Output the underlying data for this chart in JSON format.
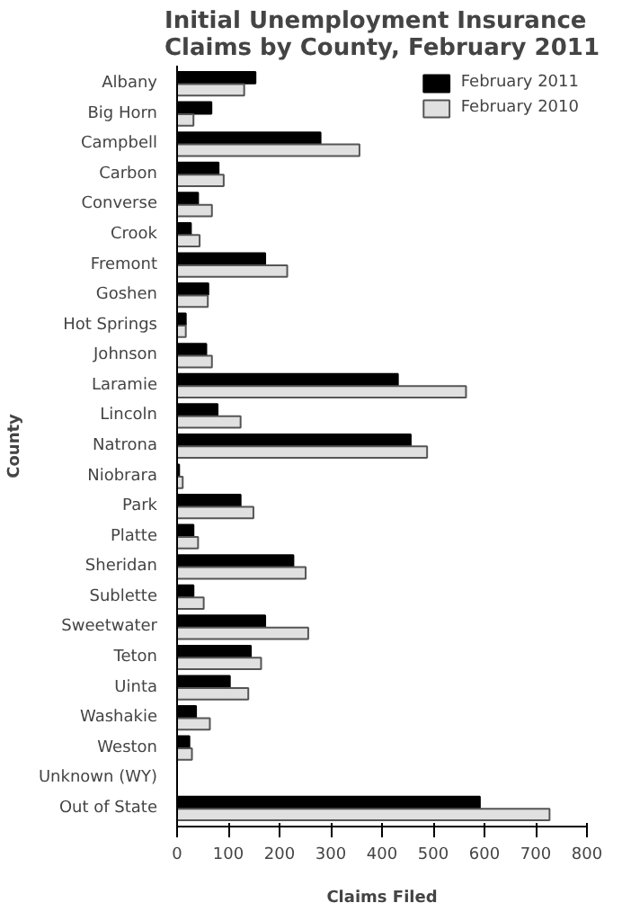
{
  "chart_data": {
    "type": "bar",
    "orientation": "horizontal",
    "title": "Initial Unemployment Insurance Claims by County, February 2011",
    "xlabel": "Claims Filed",
    "ylabel": "County",
    "categories": [
      "Albany",
      "Big Horn",
      "Campbell",
      "Carbon",
      "Converse",
      "Crook",
      "Fremont",
      "Goshen",
      "Hot Springs",
      "Johnson",
      "Laramie",
      "Lincoln",
      "Natrona",
      "Niobrara",
      "Park",
      "Platte",
      "Sheridan",
      "Sublette",
      "Sweetwater",
      "Teton",
      "Uinta",
      "Washakie",
      "Weston",
      "Unknown (WY)",
      "Out of State"
    ],
    "series": [
      {
        "name": "February 2011",
        "color": "#000000",
        "values": [
          153,
          67,
          280,
          81,
          41,
          27,
          172,
          61,
          17,
          57,
          431,
          79,
          456,
          4,
          124,
          32,
          227,
          32,
          172,
          144,
          103,
          37,
          24,
          null,
          591
        ]
      },
      {
        "name": "February 2010",
        "color": "#e0e0e0",
        "values": [
          131,
          32,
          356,
          91,
          68,
          44,
          215,
          60,
          17,
          68,
          564,
          124,
          488,
          11,
          149,
          41,
          251,
          52,
          256,
          164,
          139,
          64,
          29,
          null,
          727
        ]
      }
    ],
    "xlim": [
      0,
      800
    ],
    "xticks": [
      0,
      100,
      200,
      300,
      400,
      500,
      600,
      700,
      800
    ],
    "grid": false,
    "legend": "top right"
  }
}
